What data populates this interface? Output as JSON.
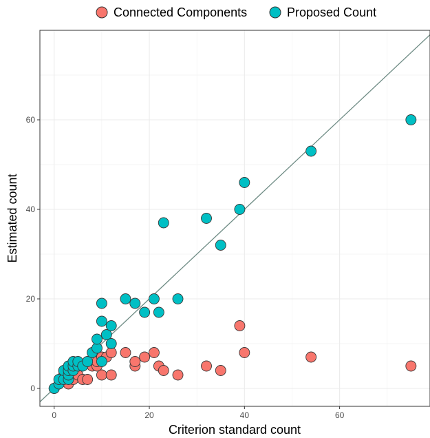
{
  "chart_data": {
    "type": "scatter",
    "xlabel": "Criterion standard count",
    "ylabel": "Estimated count",
    "xlim": [
      -3,
      79
    ],
    "ylim": [
      -4,
      80
    ],
    "x_ticks": [
      0,
      20,
      40,
      60
    ],
    "y_ticks": [
      0,
      20,
      40,
      60
    ],
    "grid": true,
    "legend_position": "top",
    "reference_line": "identity",
    "series": [
      {
        "name": "Connected Components",
        "color": "#F8766D",
        "points": [
          [
            0,
            0
          ],
          [
            1,
            1
          ],
          [
            2,
            2
          ],
          [
            2,
            3
          ],
          [
            3,
            1
          ],
          [
            3,
            3
          ],
          [
            4,
            2
          ],
          [
            4,
            4
          ],
          [
            5,
            3
          ],
          [
            5,
            5
          ],
          [
            6,
            2
          ],
          [
            7,
            2
          ],
          [
            8,
            5
          ],
          [
            9,
            5
          ],
          [
            9,
            6
          ],
          [
            10,
            3
          ],
          [
            10,
            7
          ],
          [
            11,
            7
          ],
          [
            12,
            3
          ],
          [
            12,
            8
          ],
          [
            15,
            8
          ],
          [
            17,
            5
          ],
          [
            17,
            6
          ],
          [
            19,
            7
          ],
          [
            21,
            8
          ],
          [
            22,
            5
          ],
          [
            23,
            4
          ],
          [
            26,
            3
          ],
          [
            32,
            5
          ],
          [
            35,
            4
          ],
          [
            39,
            14
          ],
          [
            40,
            8
          ],
          [
            54,
            7
          ],
          [
            75,
            5
          ]
        ]
      },
      {
        "name": "Proposed Count",
        "color": "#00BFC4",
        "points": [
          [
            0,
            0
          ],
          [
            1,
            1
          ],
          [
            1,
            2
          ],
          [
            2,
            2
          ],
          [
            2,
            4
          ],
          [
            3,
            2
          ],
          [
            3,
            3
          ],
          [
            3,
            4
          ],
          [
            3,
            5
          ],
          [
            4,
            4
          ],
          [
            4,
            5
          ],
          [
            4,
            6
          ],
          [
            5,
            5
          ],
          [
            5,
            6
          ],
          [
            6,
            5
          ],
          [
            7,
            6
          ],
          [
            8,
            8
          ],
          [
            9,
            9
          ],
          [
            9,
            11
          ],
          [
            10,
            6
          ],
          [
            10,
            15
          ],
          [
            10,
            19
          ],
          [
            11,
            12
          ],
          [
            12,
            10
          ],
          [
            12,
            14
          ],
          [
            15,
            20
          ],
          [
            17,
            19
          ],
          [
            19,
            17
          ],
          [
            21,
            20
          ],
          [
            22,
            17
          ],
          [
            23,
            37
          ],
          [
            26,
            20
          ],
          [
            32,
            38
          ],
          [
            35,
            32
          ],
          [
            39,
            40
          ],
          [
            40,
            46
          ],
          [
            54,
            53
          ],
          [
            75,
            60
          ]
        ]
      }
    ]
  }
}
